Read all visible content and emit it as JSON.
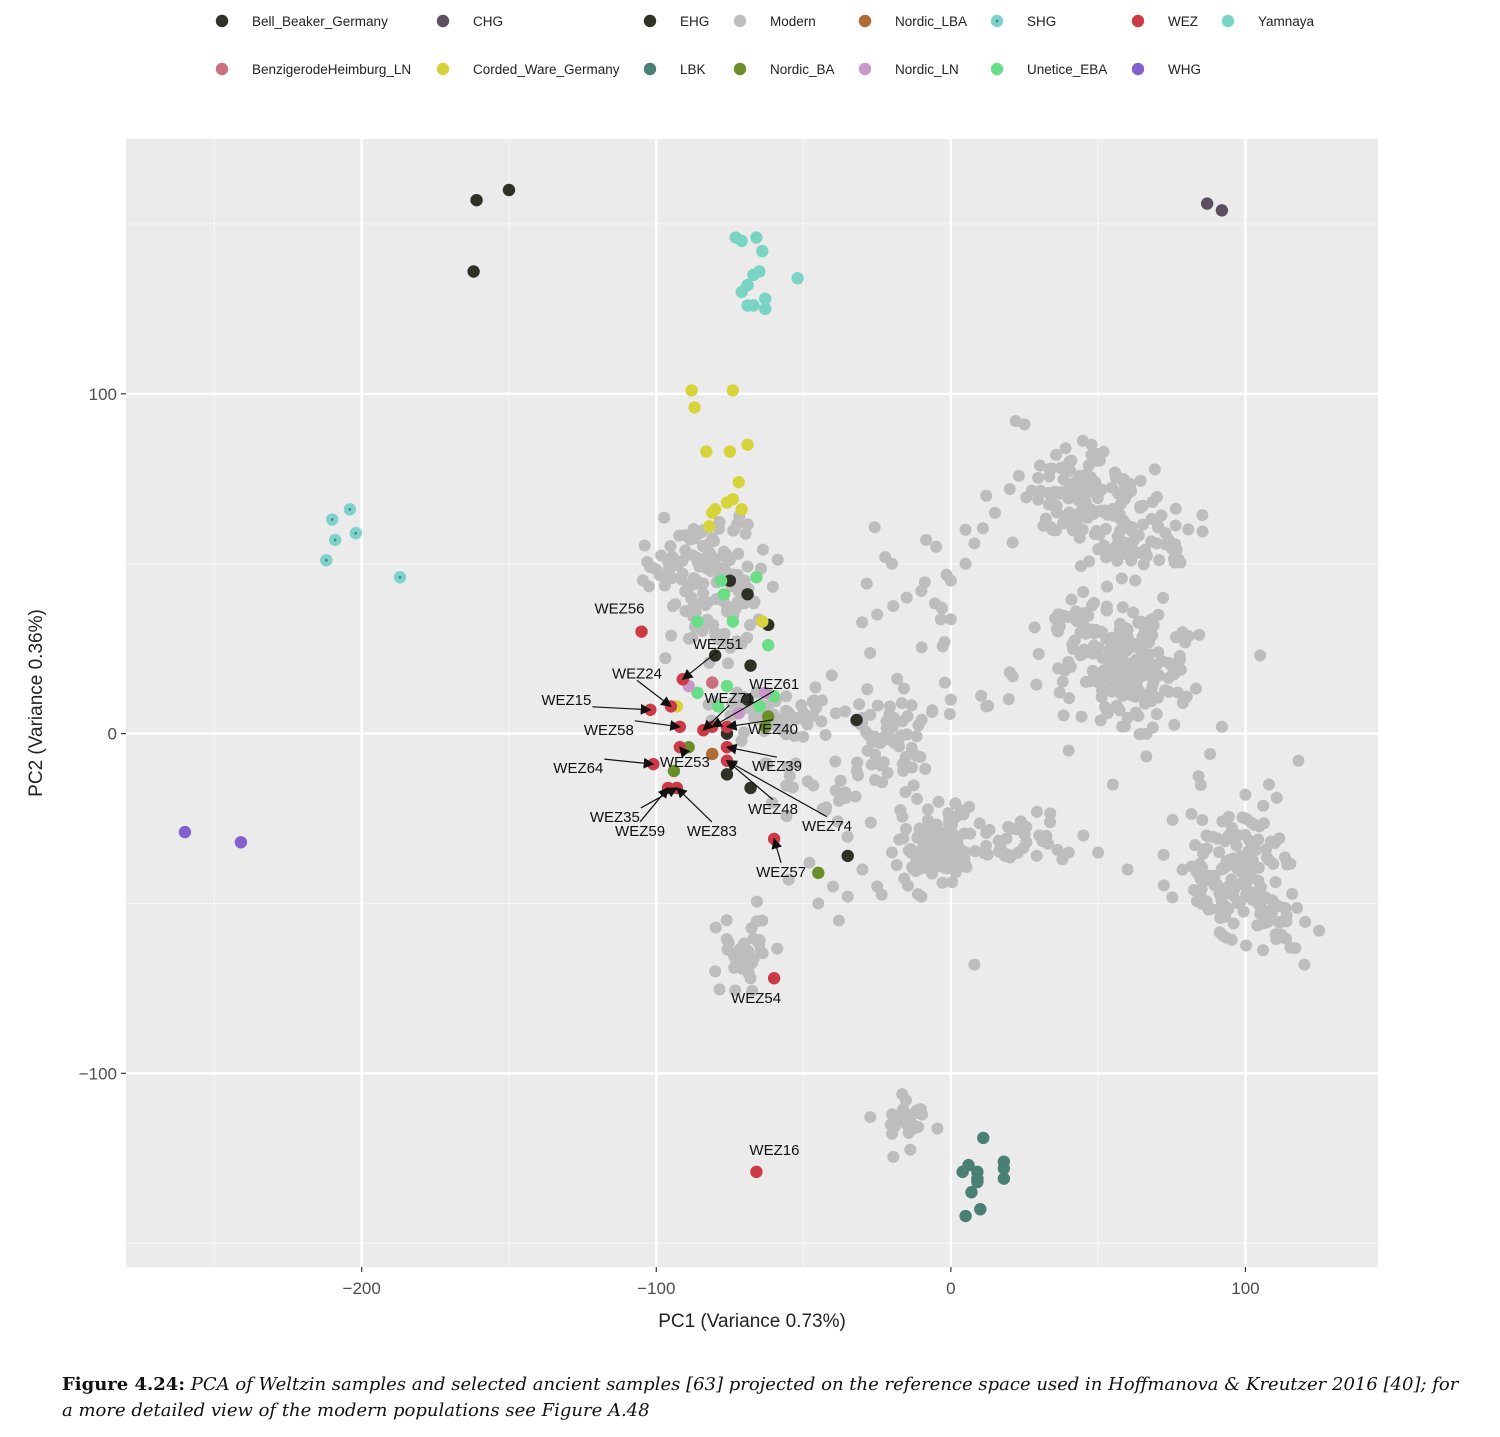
{
  "caption": {
    "label": "Figure 4.24:",
    "text": "PCA of Weltzin samples and selected ancient samples [63] projected on the reference space used in Hoffmanova & Kreutzer 2016 [40]; for a more detailed view of the modern populations see Figure A.48"
  },
  "chart_data": {
    "type": "scatter",
    "title": "",
    "xlabel": "PC1 (Variance 0.73%)",
    "ylabel": "PC2 (Variance 0.36%)",
    "xlim": [
      -280,
      145
    ],
    "ylim": [
      -157,
      175
    ],
    "xticks": [
      -200,
      -100,
      0,
      100
    ],
    "yticks": [
      -100,
      0,
      100
    ],
    "xtick_labels": [
      "−200",
      "−100",
      "0",
      "100"
    ],
    "ytick_labels": [
      "−100",
      "0",
      "100"
    ],
    "grid": true,
    "background": "#ebebeb",
    "legend_position": "top",
    "legend": [
      {
        "name": "Bell_Beaker_Germany",
        "color": "#2f3127"
      },
      {
        "name": "CHG",
        "color": "#5b5060"
      },
      {
        "name": "EHG",
        "color": "#2f3127"
      },
      {
        "name": "Modern",
        "color": "#bdbdbd"
      },
      {
        "name": "Nordic_LBA",
        "color": "#b06a34"
      },
      {
        "name": "SHG",
        "color": "#7fd1cc"
      },
      {
        "name": "WEZ",
        "color": "#cc3a46"
      },
      {
        "name": "Yamnaya",
        "color": "#79d4c4"
      },
      {
        "name": "BenzigerodeHeimburg_LN",
        "color": "#c9707e"
      },
      {
        "name": "Corded_Ware_Germany",
        "color": "#d6d43a"
      },
      {
        "name": "LBK",
        "color": "#4a7f73"
      },
      {
        "name": "Nordic_BA",
        "color": "#6a8f2a"
      },
      {
        "name": "Nordic_LN",
        "color": "#c997c8"
      },
      {
        "name": "Unetice_EBA",
        "color": "#69de86"
      },
      {
        "name": "WHG",
        "color": "#8360cf"
      }
    ],
    "series": [
      {
        "name": "Bell_Beaker_Germany",
        "points": [
          [
            -161,
            157
          ],
          [
            -150,
            160
          ],
          [
            -162,
            136
          ],
          [
            -80,
            23
          ],
          [
            -75,
            45
          ],
          [
            -69,
            41
          ],
          [
            -62,
            32
          ],
          [
            -68,
            20
          ],
          [
            -69,
            10
          ],
          [
            -76,
            0
          ],
          [
            -76,
            -12
          ],
          [
            -68,
            -16
          ],
          [
            -32,
            4
          ],
          [
            -35,
            -36
          ]
        ]
      },
      {
        "name": "CHG",
        "points": [
          [
            87,
            156
          ],
          [
            92,
            154
          ]
        ]
      },
      {
        "name": "SHG",
        "points": [
          [
            -210,
            63
          ],
          [
            -204,
            66
          ],
          [
            -209,
            57
          ],
          [
            -202,
            59
          ],
          [
            -212,
            51
          ],
          [
            -187,
            46
          ]
        ]
      },
      {
        "name": "Yamnaya",
        "points": [
          [
            -73,
            146
          ],
          [
            -71,
            145
          ],
          [
            -66,
            146
          ],
          [
            -64,
            142
          ],
          [
            -67,
            135
          ],
          [
            -65,
            136
          ],
          [
            -71,
            130
          ],
          [
            -69,
            132
          ],
          [
            -67,
            126
          ],
          [
            -63,
            128
          ],
          [
            -63,
            125
          ],
          [
            -69,
            126
          ],
          [
            -52,
            134
          ]
        ]
      },
      {
        "name": "Corded_Ware_Germany",
        "points": [
          [
            -88,
            101
          ],
          [
            -74,
            101
          ],
          [
            -87,
            96
          ],
          [
            -69,
            85
          ],
          [
            -83,
            83
          ],
          [
            -75,
            83
          ],
          [
            -72,
            74
          ],
          [
            -74,
            69
          ],
          [
            -76,
            68
          ],
          [
            -80,
            66
          ],
          [
            -81,
            65
          ],
          [
            -71,
            66
          ],
          [
            -82,
            61
          ],
          [
            -64,
            33
          ],
          [
            -93,
            8
          ]
        ]
      },
      {
        "name": "Unetice_EBA",
        "points": [
          [
            -78,
            45
          ],
          [
            -66,
            46
          ],
          [
            -77,
            41
          ],
          [
            -86,
            33
          ],
          [
            -74,
            33
          ],
          [
            -62,
            26
          ],
          [
            -76,
            14
          ],
          [
            -86,
            12
          ],
          [
            -79,
            8
          ],
          [
            -65,
            8
          ],
          [
            -60,
            11
          ]
        ]
      },
      {
        "name": "BenzigerodeHeimburg_LN",
        "points": [
          [
            -81,
            15
          ]
        ]
      },
      {
        "name": "Nordic_LN",
        "points": [
          [
            -89,
            14
          ],
          [
            -72,
            6
          ],
          [
            -63,
            12
          ]
        ]
      },
      {
        "name": "Nordic_BA",
        "points": [
          [
            -89,
            -4
          ],
          [
            -94,
            -11
          ],
          [
            -62,
            5
          ],
          [
            -63,
            2
          ],
          [
            -45,
            -41
          ]
        ]
      },
      {
        "name": "Nordic_LBA",
        "points": [
          [
            -81,
            -6
          ]
        ]
      },
      {
        "name": "WHG",
        "points": [
          [
            -260,
            -29
          ],
          [
            -241,
            -32
          ]
        ]
      },
      {
        "name": "LBK",
        "points": [
          [
            11,
            -119
          ],
          [
            18,
            -126
          ],
          [
            18,
            -128
          ],
          [
            6,
            -127
          ],
          [
            4,
            -129
          ],
          [
            9,
            -129
          ],
          [
            9,
            -131
          ],
          [
            9,
            -132
          ],
          [
            18,
            -131
          ],
          [
            7,
            -135
          ],
          [
            10,
            -140
          ],
          [
            5,
            -142
          ]
        ]
      },
      {
        "name": "WEZ",
        "points": [
          [
            -105,
            30
          ],
          [
            -91,
            16
          ],
          [
            -95,
            8
          ],
          [
            -102,
            7
          ],
          [
            -92,
            2
          ],
          [
            -81,
            2
          ],
          [
            -84,
            1
          ],
          [
            -76,
            2
          ],
          [
            -76,
            -4
          ],
          [
            -92,
            -4
          ],
          [
            -101,
            -9
          ],
          [
            -76,
            -8
          ],
          [
            -96,
            -16
          ],
          [
            -93,
            -16
          ],
          [
            -60,
            -31
          ],
          [
            -60,
            -72
          ],
          [
            -66,
            -129
          ]
        ]
      }
    ],
    "annotations": [
      {
        "text": "WEZ56",
        "target": [
          -105,
          30
        ]
      },
      {
        "text": "WEZ51",
        "target": [
          -91,
          16
        ]
      },
      {
        "text": "WEZ24",
        "target": [
          -95,
          8
        ]
      },
      {
        "text": "WEZ15",
        "target": [
          -102,
          7
        ]
      },
      {
        "text": "WEZ71",
        "target": [
          -84,
          1
        ]
      },
      {
        "text": "WEZ61",
        "target": [
          -81,
          2
        ]
      },
      {
        "text": "WEZ40",
        "target": [
          -76,
          2
        ]
      },
      {
        "text": "WEZ58",
        "target": [
          -92,
          2
        ]
      },
      {
        "text": "WEZ64",
        "target": [
          -101,
          -9
        ]
      },
      {
        "text": "WEZ53",
        "target": [
          -92,
          -4
        ]
      },
      {
        "text": "WEZ39",
        "target": [
          -76,
          -4
        ]
      },
      {
        "text": "WEZ35",
        "target": [
          -93,
          -16
        ]
      },
      {
        "text": "WEZ48",
        "target": [
          -76,
          -8
        ]
      },
      {
        "text": "WEZ59",
        "target": [
          -96,
          -16
        ]
      },
      {
        "text": "WEZ83",
        "target": [
          -93,
          -16
        ]
      },
      {
        "text": "WEZ74",
        "target": [
          -76,
          -8
        ]
      },
      {
        "text": "WEZ57",
        "target": [
          -60,
          -31
        ]
      },
      {
        "text": "WEZ54",
        "target": [
          -60,
          -72
        ]
      },
      {
        "text": "WEZ16",
        "target": [
          -66,
          -129
        ]
      }
    ],
    "modern_clusters": [
      {
        "center": [
          -80,
          45
        ],
        "spread": [
          11,
          14
        ],
        "count": 130
      },
      {
        "center": [
          -60,
          5
        ],
        "spread": [
          12,
          6
        ],
        "count": 60
      },
      {
        "center": [
          -100,
          48
        ],
        "spread": [
          5,
          5
        ],
        "count": 15
      },
      {
        "center": [
          -30,
          -12
        ],
        "spread": [
          20,
          16
        ],
        "count": 55
      },
      {
        "center": [
          -20,
          0
        ],
        "spread": [
          10,
          6
        ],
        "count": 40
      },
      {
        "center": [
          -5,
          -33
        ],
        "spread": [
          8,
          7
        ],
        "count": 150
      },
      {
        "center": [
          20,
          -30
        ],
        "spread": [
          12,
          5
        ],
        "count": 35
      },
      {
        "center": [
          45,
          70
        ],
        "spread": [
          12,
          9
        ],
        "count": 120
      },
      {
        "center": [
          65,
          55
        ],
        "spread": [
          12,
          7
        ],
        "count": 60
      },
      {
        "center": [
          55,
          25
        ],
        "spread": [
          16,
          12
        ],
        "count": 150
      },
      {
        "center": [
          65,
          15
        ],
        "spread": [
          10,
          12
        ],
        "count": 60
      },
      {
        "center": [
          95,
          -40
        ],
        "spread": [
          12,
          13
        ],
        "count": 140
      },
      {
        "center": [
          110,
          -55
        ],
        "spread": [
          7,
          8
        ],
        "count": 25
      },
      {
        "center": [
          -70,
          -65
        ],
        "spread": [
          5,
          8
        ],
        "count": 35
      },
      {
        "center": [
          -15,
          -115
        ],
        "spread": [
          6,
          6
        ],
        "count": 30
      },
      {
        "center": [
          -8,
          25
        ],
        "spread": [
          18,
          25
        ],
        "count": 25
      }
    ],
    "modern_points": [
      [
        -55,
        -43
      ],
      [
        -48,
        -38
      ],
      [
        -40,
        -45
      ],
      [
        -38,
        -55
      ],
      [
        -45,
        -50
      ],
      [
        -35,
        -48
      ],
      [
        -30,
        -40
      ],
      [
        -25,
        -45
      ],
      [
        -20,
        -35
      ],
      [
        -10,
        -48
      ],
      [
        0,
        45
      ],
      [
        5,
        50
      ],
      [
        -5,
        55
      ],
      [
        15,
        65
      ],
      [
        20,
        72
      ],
      [
        -10,
        42
      ],
      [
        -15,
        40
      ],
      [
        25,
        91
      ],
      [
        22,
        92
      ],
      [
        8,
        56
      ],
      [
        5,
        60
      ],
      [
        12,
        70
      ],
      [
        -20,
        50
      ],
      [
        -25,
        35
      ],
      [
        -2,
        15
      ],
      [
        0,
        10
      ],
      [
        12,
        8
      ],
      [
        30,
        -30
      ],
      [
        40,
        -35
      ],
      [
        50,
        -35
      ],
      [
        45,
        -30
      ],
      [
        60,
        -40
      ],
      [
        -80,
        -70
      ],
      [
        -65,
        -62
      ],
      [
        -64,
        -55
      ],
      [
        -68,
        -72
      ],
      [
        8,
        -68
      ],
      [
        20,
        18
      ],
      [
        40,
        -5
      ],
      [
        55,
        -15
      ],
      [
        105,
        23
      ],
      [
        108,
        -15
      ],
      [
        120,
        -68
      ],
      [
        125,
        -58
      ],
      [
        118,
        -8
      ],
      [
        88,
        -6
      ],
      [
        100,
        -18
      ],
      [
        92,
        2
      ]
    ]
  }
}
